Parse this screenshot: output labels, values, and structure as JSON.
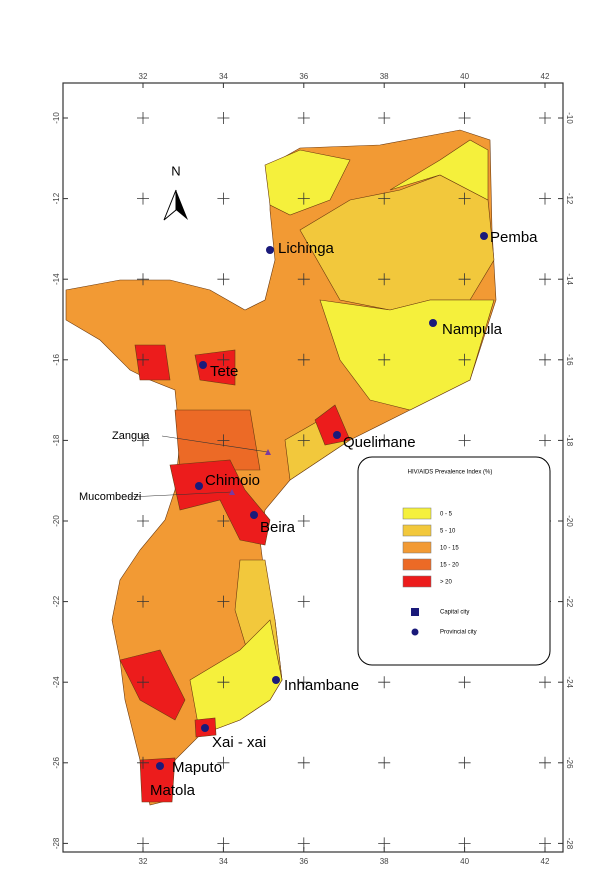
{
  "map": {
    "longitude_ticks": [
      32,
      34,
      36,
      38,
      40,
      42
    ],
    "latitude_ticks": [
      -10,
      -12,
      -14,
      -16,
      -18,
      -20,
      -22,
      -24,
      -26,
      -28
    ],
    "north": "N",
    "cities": [
      "Lichinga",
      "Pemba",
      "Nampula",
      "Tete",
      "Quelimane",
      "Chimoio",
      "Beira",
      "Inhambane",
      "Xai - xai",
      "Maputo",
      "Matola"
    ],
    "places": [
      "Zangua",
      "Mucombedzi"
    ],
    "legend": {
      "title": "HIV/AIDS Prevalence Index (%)",
      "classes": [
        {
          "label": "0 - 5",
          "color": "#f5f03c"
        },
        {
          "label": "5 - 10",
          "color": "#f2c83c"
        },
        {
          "label": "10 - 15",
          "color": "#f29a34"
        },
        {
          "label": "15 - 20",
          "color": "#ec6a26"
        },
        {
          "label": "> 20",
          "color": "#ec1c1c"
        }
      ],
      "symbols": [
        "Capital city",
        "Provincial city"
      ]
    }
  }
}
